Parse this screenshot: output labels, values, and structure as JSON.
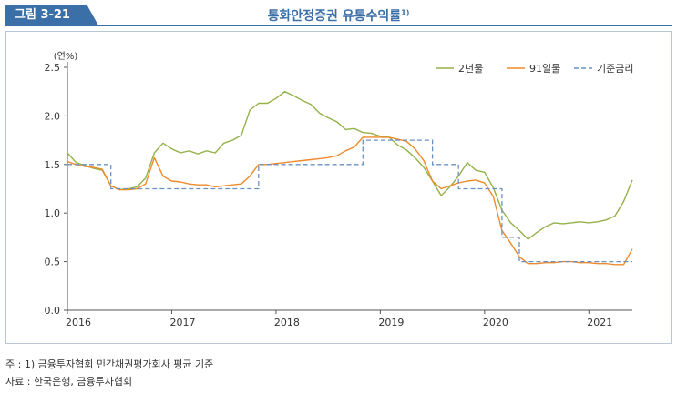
{
  "header": {
    "figure_label": "그림 3-21",
    "title": "통화안정증권 유통수익률",
    "title_footnote_mark": "1)"
  },
  "notes": {
    "note1": "주 : 1) 금융투자협회 민간채권평가회사 평균 기준",
    "source": "자료 : 한국은행, 금융투자협회"
  },
  "colors": {
    "series_2y": "#93b24a",
    "series_91d": "#ee8a2a",
    "series_base": "#6a91c4",
    "accent": "#3b6fa8"
  },
  "chart_data": {
    "type": "line",
    "ylabel": "(연%)",
    "ylim": [
      0.0,
      2.5
    ],
    "yticks": [
      "0.0",
      "0.5",
      "1.0",
      "1.5",
      "2.0",
      "2.5"
    ],
    "xlim": [
      "2016-01",
      "2021-06"
    ],
    "xticks": [
      "2016",
      "2017",
      "2018",
      "2019",
      "2020",
      "2021"
    ],
    "legend_position": "top-right",
    "series": [
      {
        "name": "2년물",
        "style": "solid",
        "points": [
          [
            "2016-01",
            1.62
          ],
          [
            "2016-02",
            1.52
          ],
          [
            "2016-03",
            1.49
          ],
          [
            "2016-04",
            1.46
          ],
          [
            "2016-05",
            1.44
          ],
          [
            "2016-06",
            1.28
          ],
          [
            "2016-07",
            1.24
          ],
          [
            "2016-08",
            1.25
          ],
          [
            "2016-09",
            1.27
          ],
          [
            "2016-10",
            1.36
          ],
          [
            "2016-11",
            1.62
          ],
          [
            "2016-12",
            1.72
          ],
          [
            "2017-01",
            1.66
          ],
          [
            "2017-02",
            1.62
          ],
          [
            "2017-03",
            1.64
          ],
          [
            "2017-04",
            1.61
          ],
          [
            "2017-05",
            1.64
          ],
          [
            "2017-06",
            1.62
          ],
          [
            "2017-07",
            1.72
          ],
          [
            "2017-08",
            1.75
          ],
          [
            "2017-09",
            1.8
          ],
          [
            "2017-10",
            2.06
          ],
          [
            "2017-11",
            2.13
          ],
          [
            "2017-12",
            2.13
          ],
          [
            "2018-01",
            2.18
          ],
          [
            "2018-02",
            2.25
          ],
          [
            "2018-03",
            2.21
          ],
          [
            "2018-04",
            2.16
          ],
          [
            "2018-05",
            2.12
          ],
          [
            "2018-06",
            2.03
          ],
          [
            "2018-07",
            1.98
          ],
          [
            "2018-08",
            1.94
          ],
          [
            "2018-09",
            1.86
          ],
          [
            "2018-10",
            1.87
          ],
          [
            "2018-11",
            1.83
          ],
          [
            "2018-12",
            1.82
          ],
          [
            "2019-01",
            1.79
          ],
          [
            "2019-02",
            1.78
          ],
          [
            "2019-03",
            1.7
          ],
          [
            "2019-04",
            1.65
          ],
          [
            "2019-05",
            1.57
          ],
          [
            "2019-06",
            1.47
          ],
          [
            "2019-07",
            1.33
          ],
          [
            "2019-08",
            1.18
          ],
          [
            "2019-09",
            1.27
          ],
          [
            "2019-10",
            1.38
          ],
          [
            "2019-11",
            1.52
          ],
          [
            "2019-12",
            1.44
          ],
          [
            "2020-01",
            1.42
          ],
          [
            "2020-02",
            1.26
          ],
          [
            "2020-03",
            1.03
          ],
          [
            "2020-04",
            0.9
          ],
          [
            "2020-05",
            0.82
          ],
          [
            "2020-06",
            0.73
          ],
          [
            "2020-07",
            0.8
          ],
          [
            "2020-08",
            0.86
          ],
          [
            "2020-09",
            0.9
          ],
          [
            "2020-10",
            0.89
          ],
          [
            "2020-11",
            0.9
          ],
          [
            "2020-12",
            0.91
          ],
          [
            "2021-01",
            0.9
          ],
          [
            "2021-02",
            0.91
          ],
          [
            "2021-03",
            0.93
          ],
          [
            "2021-04",
            0.97
          ],
          [
            "2021-05",
            1.12
          ],
          [
            "2021-06",
            1.34
          ]
        ]
      },
      {
        "name": "91일물",
        "style": "solid",
        "points": [
          [
            "2016-01",
            1.53
          ],
          [
            "2016-02",
            1.5
          ],
          [
            "2016-03",
            1.48
          ],
          [
            "2016-04",
            1.47
          ],
          [
            "2016-05",
            1.45
          ],
          [
            "2016-06",
            1.28
          ],
          [
            "2016-07",
            1.24
          ],
          [
            "2016-08",
            1.24
          ],
          [
            "2016-09",
            1.25
          ],
          [
            "2016-10",
            1.3
          ],
          [
            "2016-11",
            1.57
          ],
          [
            "2016-12",
            1.38
          ],
          [
            "2017-01",
            1.33
          ],
          [
            "2017-02",
            1.32
          ],
          [
            "2017-03",
            1.3
          ],
          [
            "2017-04",
            1.29
          ],
          [
            "2017-05",
            1.29
          ],
          [
            "2017-06",
            1.27
          ],
          [
            "2017-07",
            1.28
          ],
          [
            "2017-08",
            1.29
          ],
          [
            "2017-09",
            1.3
          ],
          [
            "2017-10",
            1.38
          ],
          [
            "2017-11",
            1.5
          ],
          [
            "2017-12",
            1.5
          ],
          [
            "2018-01",
            1.51
          ],
          [
            "2018-02",
            1.52
          ],
          [
            "2018-03",
            1.53
          ],
          [
            "2018-04",
            1.54
          ],
          [
            "2018-05",
            1.55
          ],
          [
            "2018-06",
            1.56
          ],
          [
            "2018-07",
            1.57
          ],
          [
            "2018-08",
            1.59
          ],
          [
            "2018-09",
            1.64
          ],
          [
            "2018-10",
            1.68
          ],
          [
            "2018-11",
            1.78
          ],
          [
            "2018-12",
            1.78
          ],
          [
            "2019-01",
            1.78
          ],
          [
            "2019-02",
            1.78
          ],
          [
            "2019-03",
            1.76
          ],
          [
            "2019-04",
            1.74
          ],
          [
            "2019-05",
            1.66
          ],
          [
            "2019-06",
            1.54
          ],
          [
            "2019-07",
            1.33
          ],
          [
            "2019-08",
            1.25
          ],
          [
            "2019-09",
            1.28
          ],
          [
            "2019-10",
            1.31
          ],
          [
            "2019-11",
            1.33
          ],
          [
            "2019-12",
            1.34
          ],
          [
            "2020-01",
            1.31
          ],
          [
            "2020-02",
            1.17
          ],
          [
            "2020-03",
            0.82
          ],
          [
            "2020-04",
            0.69
          ],
          [
            "2020-05",
            0.55
          ],
          [
            "2020-06",
            0.48
          ],
          [
            "2020-07",
            0.48
          ],
          [
            "2020-08",
            0.49
          ],
          [
            "2020-09",
            0.49
          ],
          [
            "2020-10",
            0.5
          ],
          [
            "2020-11",
            0.5
          ],
          [
            "2020-12",
            0.49
          ],
          [
            "2021-01",
            0.49
          ],
          [
            "2021-02",
            0.48
          ],
          [
            "2021-03",
            0.48
          ],
          [
            "2021-04",
            0.47
          ],
          [
            "2021-05",
            0.47
          ],
          [
            "2021-06",
            0.63
          ]
        ]
      },
      {
        "name": "기준금리",
        "style": "dashed-step",
        "steps": [
          [
            "2016-01",
            1.5
          ],
          [
            "2016-06",
            1.25
          ],
          [
            "2017-11",
            1.5
          ],
          [
            "2018-11",
            1.75
          ],
          [
            "2019-07",
            1.5
          ],
          [
            "2019-10",
            1.25
          ],
          [
            "2020-03",
            0.75
          ],
          [
            "2020-05",
            0.5
          ],
          [
            "2021-06",
            0.5
          ]
        ]
      }
    ]
  }
}
